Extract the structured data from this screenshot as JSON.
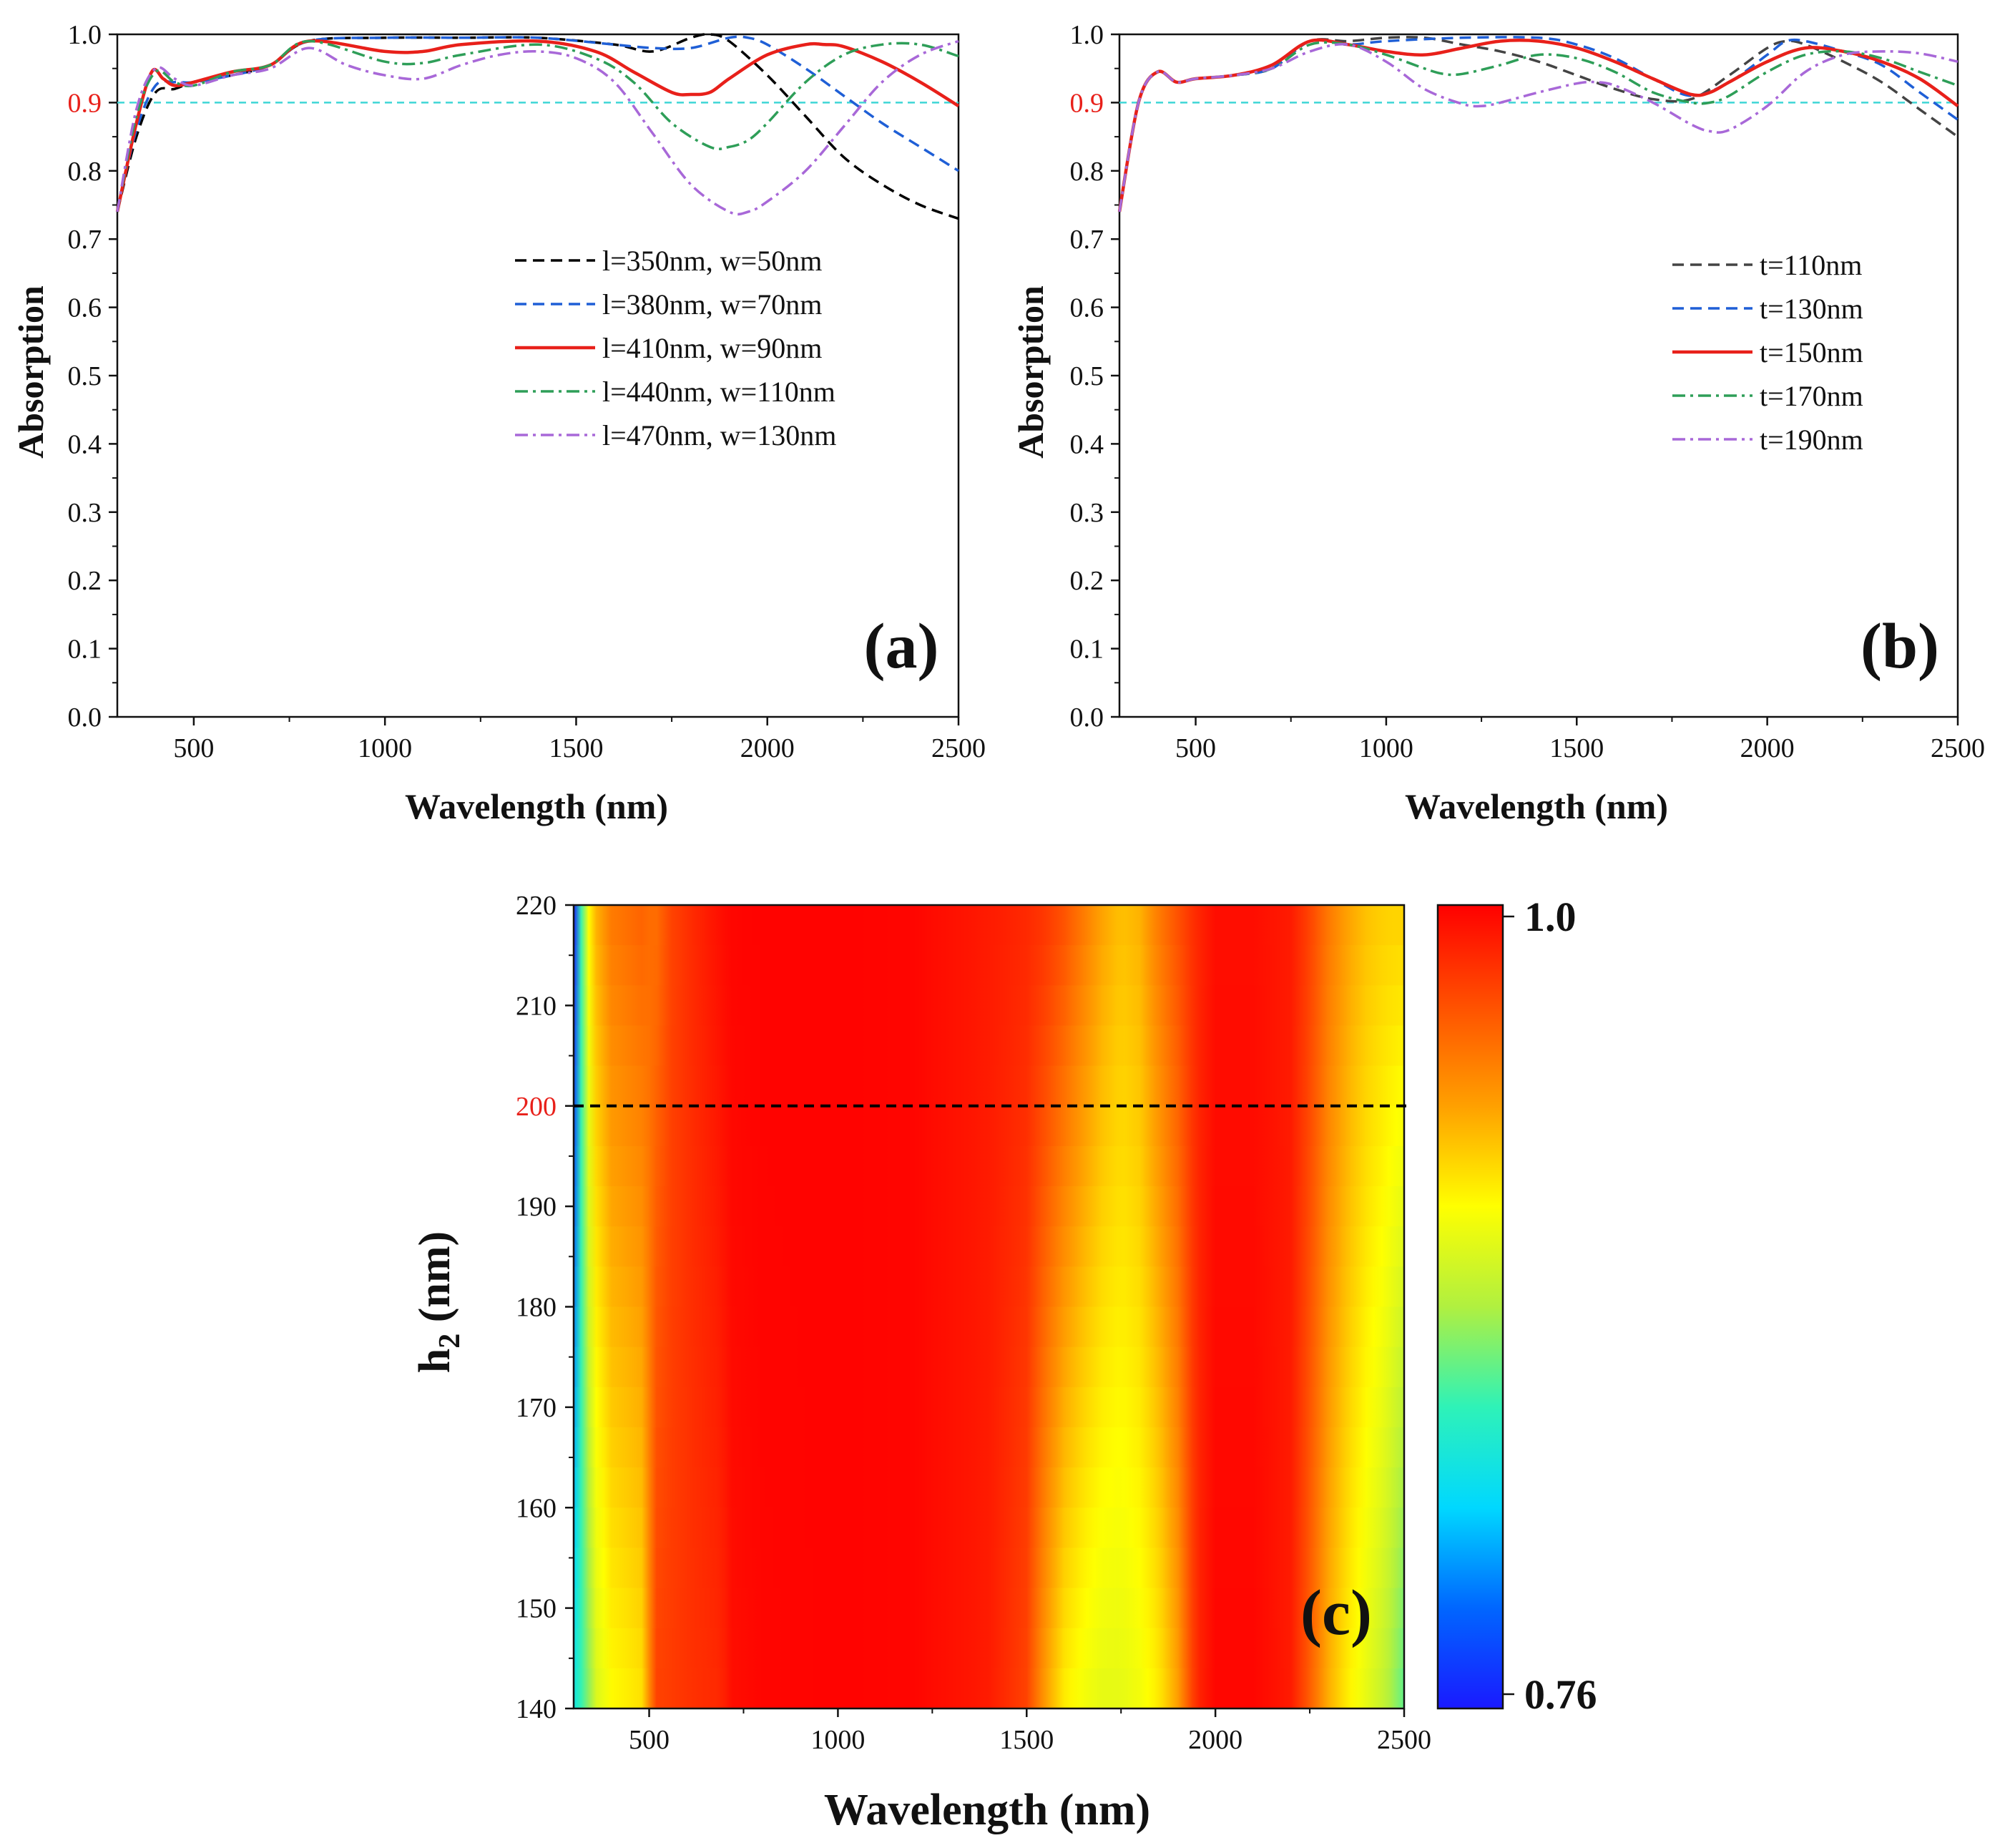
{
  "figure": {
    "panels": [
      "(a)",
      "(b)",
      "(c)"
    ]
  },
  "chart_data": [
    {
      "type": "line",
      "panel_label": "(a)",
      "xlabel": "Wavelength (nm)",
      "ylabel": "Absorption",
      "xlim": [
        300,
        2500
      ],
      "ylim": [
        0.0,
        1.0
      ],
      "xticks": [
        500,
        1000,
        1500,
        2000,
        2500
      ],
      "yticks": [
        0.0,
        0.1,
        0.2,
        0.3,
        0.4,
        0.5,
        0.6,
        0.7,
        0.8,
        0.9,
        1.0
      ],
      "ytick_labels": [
        "0.0",
        "0.1",
        "0.2",
        "0.3",
        "0.4",
        "0.5",
        "0.6",
        "0.7",
        "0.8",
        "0.9",
        "1.0"
      ],
      "highlight_tick": 0.9,
      "highlight_color": "#e8201a",
      "reference_line": {
        "y": 0.9,
        "color": "#3fd6d6"
      },
      "legend_position": "middle-right",
      "series": [
        {
          "name": "l=350nm, w=50nm",
          "color": "#000000",
          "dash": "dash",
          "x": [
            300,
            350,
            400,
            450,
            500,
            600,
            700,
            800,
            1000,
            1200,
            1400,
            1600,
            1700,
            1800,
            1850,
            1900,
            2000,
            2100,
            2200,
            2300,
            2400,
            2500
          ],
          "y": [
            0.74,
            0.85,
            0.915,
            0.92,
            0.93,
            0.94,
            0.955,
            0.99,
            0.995,
            0.995,
            0.995,
            0.985,
            0.975,
            0.995,
            1.0,
            0.99,
            0.94,
            0.88,
            0.82,
            0.78,
            0.75,
            0.73
          ]
        },
        {
          "name": "l=380nm, w=70nm",
          "color": "#1f5fd6",
          "dash": "dash",
          "x": [
            300,
            350,
            400,
            450,
            500,
            600,
            700,
            800,
            1000,
            1200,
            1400,
            1600,
            1700,
            1800,
            1900,
            1950,
            2000,
            2100,
            2200,
            2300,
            2400,
            2500
          ],
          "y": [
            0.74,
            0.86,
            0.925,
            0.93,
            0.93,
            0.94,
            0.955,
            0.99,
            0.995,
            0.995,
            0.995,
            0.985,
            0.98,
            0.98,
            0.995,
            0.995,
            0.985,
            0.95,
            0.91,
            0.87,
            0.835,
            0.8
          ]
        },
        {
          "name": "l=410nm, w=90nm",
          "color": "#e8201a",
          "dash": "solid",
          "x": [
            300,
            350,
            390,
            420,
            450,
            500,
            600,
            700,
            800,
            1000,
            1100,
            1200,
            1400,
            1550,
            1650,
            1750,
            1800,
            1850,
            1900,
            2000,
            2100,
            2150,
            2200,
            2300,
            2400,
            2500
          ],
          "y": [
            0.74,
            0.87,
            0.945,
            0.935,
            0.925,
            0.93,
            0.945,
            0.955,
            0.99,
            0.975,
            0.975,
            0.985,
            0.99,
            0.975,
            0.945,
            0.915,
            0.912,
            0.915,
            0.935,
            0.97,
            0.985,
            0.985,
            0.982,
            0.96,
            0.93,
            0.895
          ]
        },
        {
          "name": "l=440nm, w=110nm",
          "color": "#2e9e58",
          "dash": "dashdot",
          "x": [
            300,
            350,
            400,
            450,
            500,
            600,
            700,
            800,
            1000,
            1100,
            1200,
            1400,
            1550,
            1650,
            1750,
            1850,
            1900,
            1950,
            2000,
            2100,
            2200,
            2300,
            2400,
            2500
          ],
          "y": [
            0.74,
            0.88,
            0.945,
            0.93,
            0.925,
            0.945,
            0.955,
            0.99,
            0.96,
            0.958,
            0.97,
            0.985,
            0.965,
            0.93,
            0.87,
            0.835,
            0.835,
            0.845,
            0.87,
            0.93,
            0.97,
            0.985,
            0.985,
            0.968
          ]
        },
        {
          "name": "l=470nm, w=130nm",
          "color": "#a868d8",
          "dash": "dashdot",
          "x": [
            300,
            350,
            400,
            450,
            500,
            600,
            700,
            800,
            900,
            1000,
            1100,
            1200,
            1300,
            1400,
            1500,
            1600,
            1700,
            1800,
            1900,
            1950,
            2000,
            2100,
            2200,
            2300,
            2400,
            2500
          ],
          "y": [
            0.74,
            0.89,
            0.95,
            0.935,
            0.925,
            0.94,
            0.95,
            0.98,
            0.955,
            0.94,
            0.935,
            0.955,
            0.97,
            0.975,
            0.965,
            0.93,
            0.855,
            0.78,
            0.74,
            0.74,
            0.755,
            0.8,
            0.865,
            0.93,
            0.97,
            0.99
          ]
        }
      ]
    },
    {
      "type": "line",
      "panel_label": "(b)",
      "xlabel": "Wavelength (nm)",
      "ylabel": "Absorption",
      "xlim": [
        300,
        2500
      ],
      "ylim": [
        0.0,
        1.0
      ],
      "xticks": [
        500,
        1000,
        1500,
        2000,
        2500
      ],
      "yticks": [
        0.0,
        0.1,
        0.2,
        0.3,
        0.4,
        0.5,
        0.6,
        0.7,
        0.8,
        0.9,
        1.0
      ],
      "ytick_labels": [
        "0.0",
        "0.1",
        "0.2",
        "0.3",
        "0.4",
        "0.5",
        "0.6",
        "0.7",
        "0.8",
        "0.9",
        "1.0"
      ],
      "highlight_tick": 0.9,
      "highlight_color": "#e8201a",
      "reference_line": {
        "y": 0.9,
        "color": "#3fd6d6"
      },
      "legend_position": "middle-right",
      "series": [
        {
          "name": "t=110nm",
          "color": "#444444",
          "dash": "dash",
          "x": [
            300,
            350,
            400,
            450,
            500,
            600,
            700,
            800,
            900,
            1000,
            1100,
            1200,
            1300,
            1400,
            1500,
            1600,
            1700,
            1800,
            1900,
            2000,
            2050,
            2100,
            2200,
            2300,
            2400,
            2500
          ],
          "y": [
            0.74,
            0.9,
            0.945,
            0.93,
            0.935,
            0.94,
            0.95,
            0.99,
            0.99,
            0.995,
            0.995,
            0.985,
            0.975,
            0.96,
            0.94,
            0.92,
            0.905,
            0.905,
            0.94,
            0.98,
            0.99,
            0.985,
            0.96,
            0.93,
            0.89,
            0.85
          ]
        },
        {
          "name": "t=130nm",
          "color": "#1f5fd6",
          "dash": "dash",
          "x": [
            300,
            350,
            400,
            450,
            500,
            600,
            700,
            800,
            900,
            1000,
            1200,
            1400,
            1500,
            1600,
            1700,
            1800,
            1900,
            2000,
            2050,
            2100,
            2200,
            2300,
            2400,
            2500
          ],
          "y": [
            0.74,
            0.9,
            0.945,
            0.93,
            0.935,
            0.94,
            0.95,
            0.99,
            0.985,
            0.99,
            0.995,
            0.995,
            0.985,
            0.965,
            0.935,
            0.91,
            0.93,
            0.97,
            0.99,
            0.99,
            0.975,
            0.955,
            0.915,
            0.875
          ]
        },
        {
          "name": "t=150nm",
          "color": "#e8201a",
          "dash": "solid",
          "x": [
            300,
            350,
            400,
            450,
            500,
            600,
            700,
            800,
            900,
            1000,
            1100,
            1200,
            1300,
            1400,
            1500,
            1600,
            1700,
            1800,
            1850,
            1900,
            2000,
            2100,
            2200,
            2300,
            2400,
            2500
          ],
          "y": [
            0.74,
            0.9,
            0.945,
            0.93,
            0.935,
            0.94,
            0.955,
            0.99,
            0.985,
            0.975,
            0.97,
            0.98,
            0.99,
            0.99,
            0.98,
            0.96,
            0.935,
            0.912,
            0.915,
            0.93,
            0.96,
            0.98,
            0.975,
            0.96,
            0.935,
            0.895
          ]
        },
        {
          "name": "t=170nm",
          "color": "#2e9e58",
          "dash": "dashdot",
          "x": [
            300,
            350,
            400,
            450,
            500,
            600,
            700,
            800,
            900,
            1000,
            1100,
            1150,
            1200,
            1300,
            1400,
            1500,
            1600,
            1700,
            1800,
            1850,
            1900,
            2000,
            2100,
            2200,
            2300,
            2400,
            2500
          ],
          "y": [
            0.74,
            0.9,
            0.945,
            0.93,
            0.935,
            0.94,
            0.95,
            0.985,
            0.985,
            0.97,
            0.95,
            0.942,
            0.942,
            0.955,
            0.97,
            0.965,
            0.945,
            0.915,
            0.9,
            0.9,
            0.91,
            0.945,
            0.97,
            0.975,
            0.965,
            0.945,
            0.925
          ]
        },
        {
          "name": "t=190nm",
          "color": "#a868d8",
          "dash": "dashdot",
          "x": [
            300,
            350,
            400,
            450,
            500,
            600,
            700,
            800,
            900,
            1000,
            1100,
            1200,
            1250,
            1300,
            1400,
            1500,
            1550,
            1600,
            1700,
            1800,
            1850,
            1900,
            2000,
            2100,
            2200,
            2300,
            2400,
            2500
          ],
          "y": [
            0.74,
            0.9,
            0.945,
            0.93,
            0.935,
            0.94,
            0.95,
            0.975,
            0.985,
            0.96,
            0.92,
            0.898,
            0.895,
            0.9,
            0.915,
            0.928,
            0.93,
            0.925,
            0.9,
            0.868,
            0.858,
            0.86,
            0.895,
            0.945,
            0.97,
            0.975,
            0.972,
            0.96
          ]
        }
      ]
    },
    {
      "type": "heatmap",
      "panel_label": "(c)",
      "xlabel": "Wavelength (nm)",
      "ylabel_main": "h",
      "ylabel_sub": "2",
      "ylabel_unit": " (nm)",
      "xlim": [
        300,
        2500
      ],
      "ylim": [
        140,
        220
      ],
      "xticks": [
        500,
        1000,
        1500,
        2000,
        2500
      ],
      "yticks": [
        140,
        150,
        160,
        170,
        180,
        190,
        200,
        210,
        220
      ],
      "highlight_tick": 200,
      "highlight_color": "#e8201a",
      "reference_line": {
        "y": 200,
        "color": "#000000",
        "dash": "dash"
      },
      "colorbar": {
        "min": 0.76,
        "max": 1.0,
        "min_label": "0.76",
        "max_label": "1.0"
      },
      "colorbar_stops": [
        "#1a1aff",
        "#0066ff",
        "#00d8ff",
        "#2ef2b8",
        "#b0f040",
        "#ffff00",
        "#ffa000",
        "#ff5000",
        "#ff0000"
      ],
      "value_profile": {
        "h": [
          140,
          220
        ],
        "x": [
          300,
          330,
          360,
          400,
          450,
          490,
          510,
          560,
          620,
          690,
          720,
          800,
          1000,
          1200,
          1400,
          1500,
          1550,
          1600,
          1650,
          1700,
          1750,
          1800,
          1850,
          1900,
          1950,
          2000,
          2100,
          2200,
          2250,
          2300,
          2350,
          2400,
          2450,
          2500
        ],
        "v140": [
          0.835,
          0.86,
          0.895,
          0.91,
          0.915,
          0.92,
          0.975,
          0.978,
          0.982,
          0.985,
          0.995,
          0.998,
          0.999,
          0.998,
          0.99,
          0.975,
          0.94,
          0.915,
          0.905,
          0.9,
          0.9,
          0.905,
          0.915,
          0.94,
          0.985,
          0.998,
          0.998,
          0.99,
          0.965,
          0.935,
          0.915,
          0.9,
          0.885,
          0.86
        ],
        "v220": [
          0.76,
          0.9,
          0.935,
          0.955,
          0.96,
          0.965,
          0.955,
          0.975,
          0.985,
          0.995,
          0.998,
          0.999,
          0.999,
          0.998,
          0.99,
          0.985,
          0.98,
          0.97,
          0.955,
          0.94,
          0.93,
          0.935,
          0.955,
          0.97,
          0.985,
          0.995,
          0.995,
          0.99,
          0.975,
          0.955,
          0.94,
          0.93,
          0.925,
          0.925
        ]
      }
    }
  ]
}
